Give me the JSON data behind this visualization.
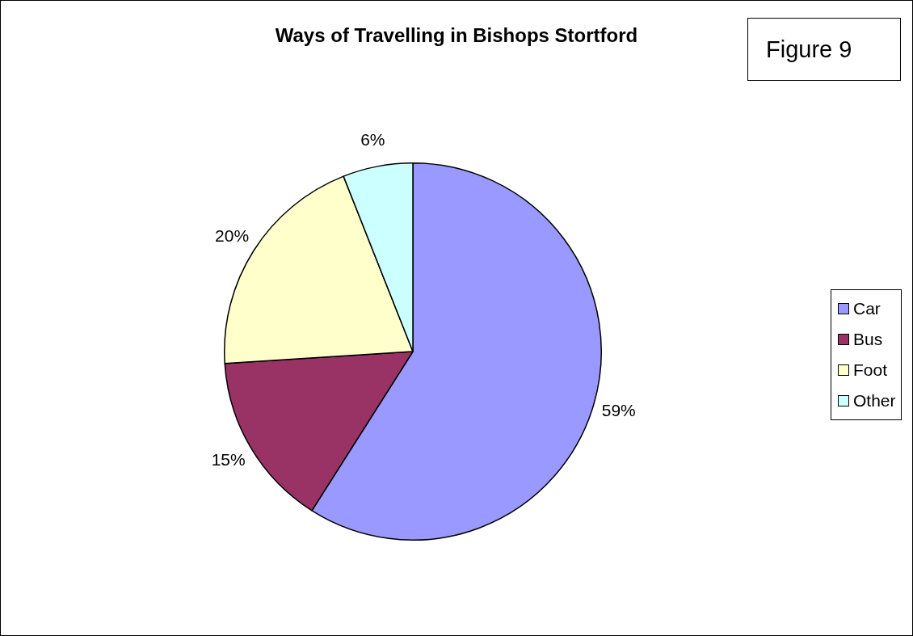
{
  "chart_data": {
    "type": "pie",
    "title": "Ways of Travelling in Bishops Stortford",
    "categories": [
      "Car",
      "Bus",
      "Foot",
      "Other"
    ],
    "values": [
      59,
      15,
      20,
      6
    ],
    "value_labels": [
      "59%",
      "15%",
      "20%",
      "6%"
    ],
    "colors": [
      "#9999ff",
      "#993366",
      "#ffffcc",
      "#ccffff"
    ],
    "legend": "right",
    "annotations": [
      "Figure 9"
    ]
  }
}
